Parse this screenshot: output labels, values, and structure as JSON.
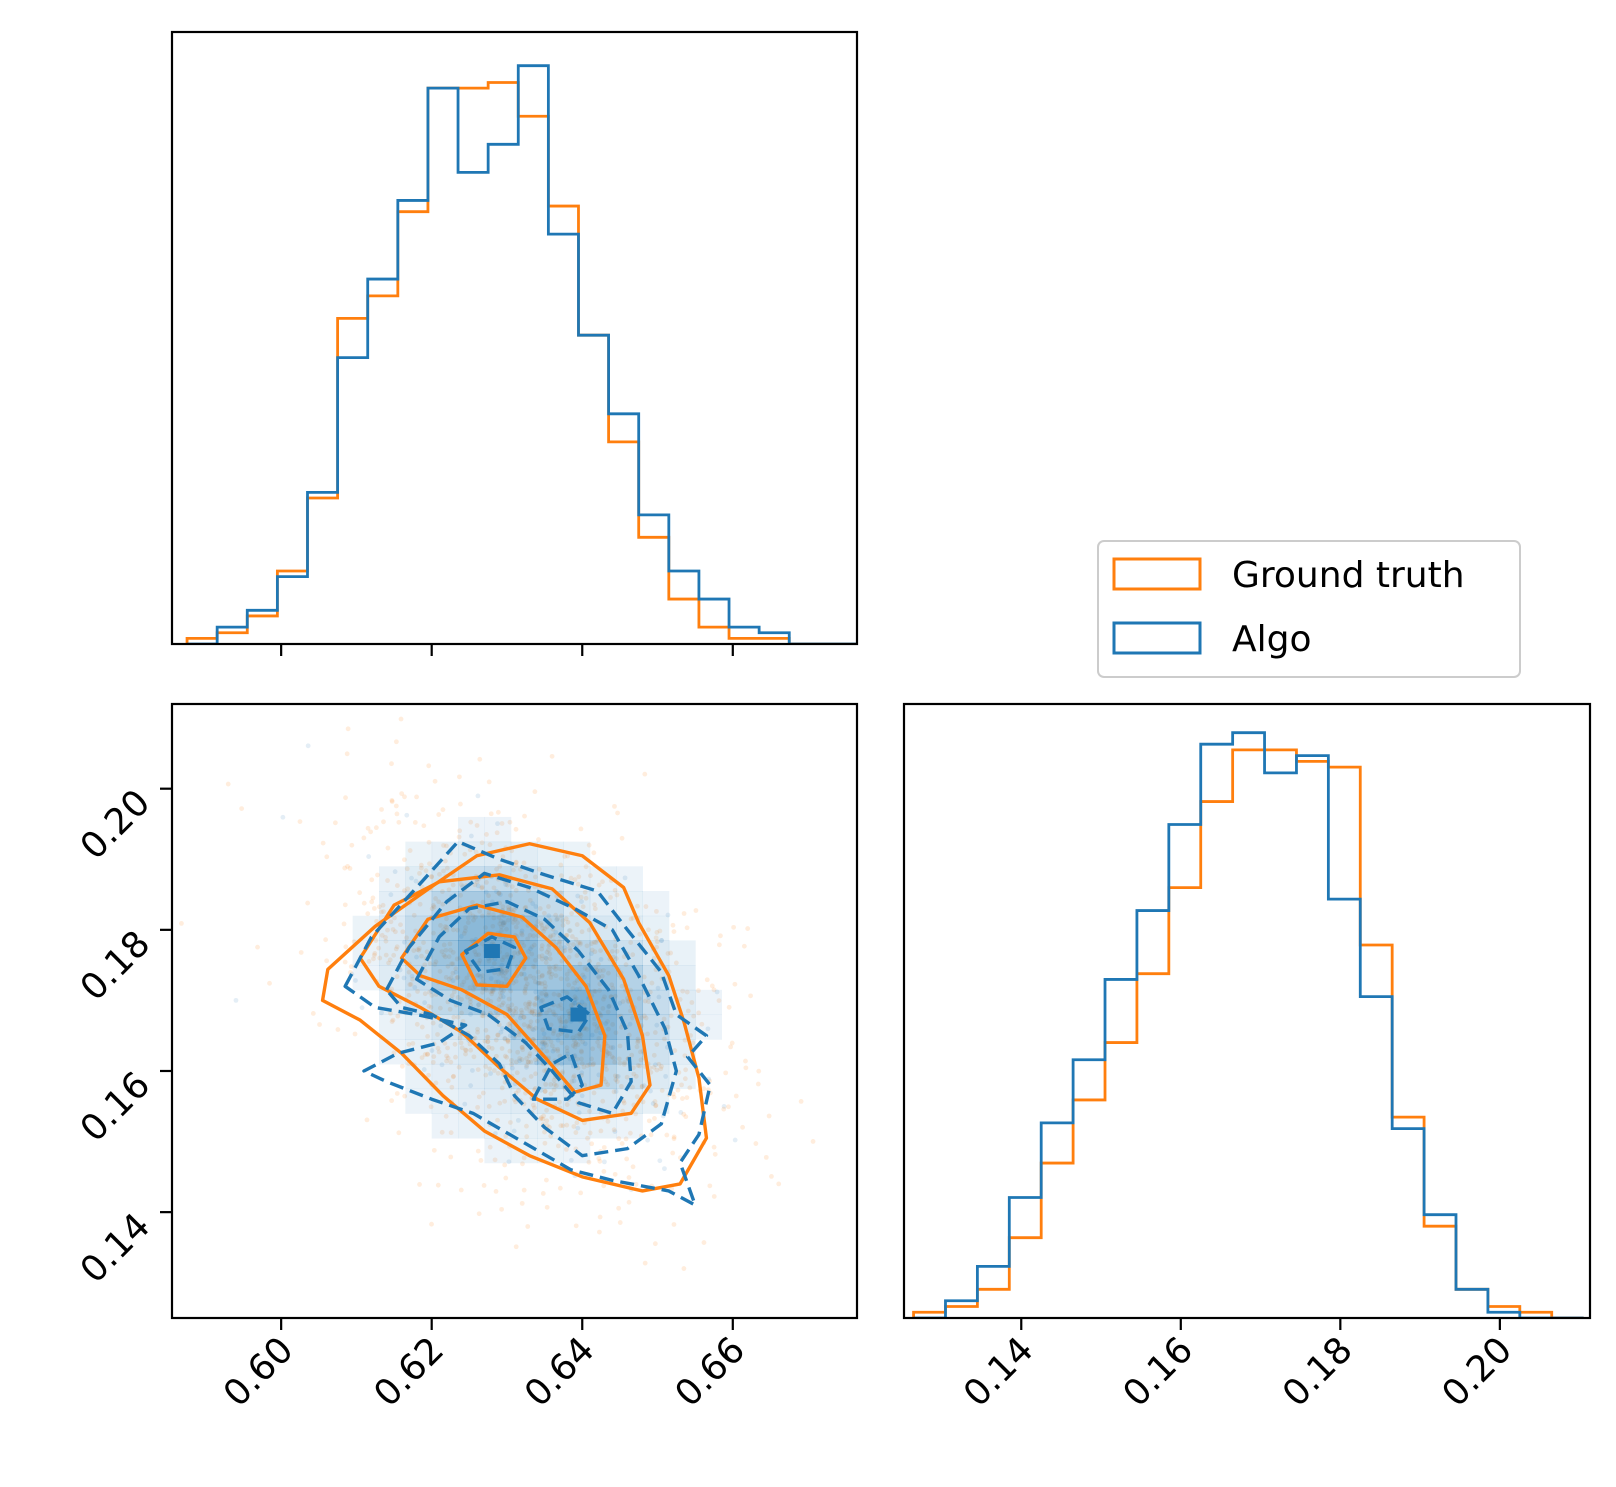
{
  "colors": {
    "ground_truth": "#ff7f0e",
    "algo": "#1f77b4",
    "axes": "#000000"
  },
  "legend": {
    "placement": "right-middle",
    "entries": [
      {
        "label": "Ground truth",
        "color": "#ff7f0e"
      },
      {
        "label": "Algo",
        "color": "#1f77b4"
      }
    ]
  },
  "chart_data": [
    {
      "panel": "top-left",
      "type": "histogram-step",
      "xlim": [
        0.5855,
        0.6765
      ],
      "x_ticks": [
        0.6,
        0.62,
        0.64,
        0.66
      ],
      "x_tick_labels_shown": false,
      "ylim": [
        0,
        1.09
      ],
      "bin_edges": [
        0.5875,
        0.5915,
        0.5955,
        0.5995,
        0.6035,
        0.6075,
        0.6115,
        0.6155,
        0.6195,
        0.6235,
        0.6275,
        0.6315,
        0.6355,
        0.6395,
        0.6435,
        0.6475,
        0.6515,
        0.6555,
        0.6595,
        0.6635,
        0.6675,
        0.6715,
        0.6765
      ],
      "series": [
        {
          "name": "Ground truth",
          "values": [
            0.01,
            0.02,
            0.05,
            0.13,
            0.26,
            0.58,
            0.62,
            0.77,
            0.99,
            0.99,
            1.0,
            0.94,
            0.78,
            0.55,
            0.36,
            0.19,
            0.08,
            0.03,
            0.01,
            0.01,
            0.0,
            0.0
          ]
        },
        {
          "name": "Algo",
          "values": [
            0.0,
            0.03,
            0.06,
            0.12,
            0.27,
            0.51,
            0.65,
            0.79,
            0.99,
            0.84,
            0.89,
            1.03,
            0.73,
            0.55,
            0.41,
            0.23,
            0.13,
            0.08,
            0.03,
            0.02,
            0.0,
            0.0
          ]
        }
      ]
    },
    {
      "panel": "bottom-left",
      "type": "scatter-contour",
      "xlim": [
        0.5855,
        0.6765
      ],
      "ylim": [
        0.125,
        0.212
      ],
      "x_ticks": [
        0.6,
        0.62,
        0.64,
        0.66
      ],
      "y_ticks": [
        0.14,
        0.16,
        0.18,
        0.2
      ],
      "x_tick_labels": [
        "0.60",
        "0.62",
        "0.64",
        "0.66"
      ],
      "y_tick_labels": [
        "0.14",
        "0.16",
        "0.18",
        "0.20"
      ],
      "contours": [
        {
          "name": "Ground truth",
          "level": 1,
          "points": [
            [
              0.6062,
              0.1744
            ],
            [
              0.6125,
              0.1805
            ],
            [
              0.6205,
              0.1865
            ],
            [
              0.626,
              0.1905
            ],
            [
              0.633,
              0.1922
            ],
            [
              0.64,
              0.1905
            ],
            [
              0.6455,
              0.186
            ],
            [
              0.6475,
              0.181
            ],
            [
              0.6515,
              0.1735
            ],
            [
              0.6535,
              0.167
            ],
            [
              0.6555,
              0.159
            ],
            [
              0.6565,
              0.1505
            ],
            [
              0.653,
              0.144
            ],
            [
              0.648,
              0.143
            ],
            [
              0.64,
              0.145
            ],
            [
              0.633,
              0.148
            ],
            [
              0.627,
              0.1515
            ],
            [
              0.6215,
              0.1565
            ],
            [
              0.616,
              0.1625
            ],
            [
              0.6105,
              0.1672
            ],
            [
              0.6055,
              0.17
            ],
            [
              0.6062,
              0.1744
            ]
          ]
        },
        {
          "name": "Ground truth",
          "level": 2,
          "points": [
            [
              0.6105,
              0.176
            ],
            [
              0.615,
              0.1835
            ],
            [
              0.621,
              0.1868
            ],
            [
              0.629,
              0.1878
            ],
            [
              0.636,
              0.1858
            ],
            [
              0.641,
              0.181
            ],
            [
              0.6455,
              0.173
            ],
            [
              0.648,
              0.165
            ],
            [
              0.649,
              0.158
            ],
            [
              0.6465,
              0.154
            ],
            [
              0.64,
              0.153
            ],
            [
              0.634,
              0.156
            ],
            [
              0.629,
              0.1605
            ],
            [
              0.624,
              0.1655
            ],
            [
              0.6185,
              0.169
            ],
            [
              0.613,
              0.172
            ],
            [
              0.6105,
              0.176
            ]
          ]
        },
        {
          "name": "Ground truth",
          "level": 3,
          "points": [
            [
              0.616,
              0.176
            ],
            [
              0.6195,
              0.1815
            ],
            [
              0.626,
              0.1835
            ],
            [
              0.632,
              0.1818
            ],
            [
              0.6365,
              0.1775
            ],
            [
              0.6405,
              0.172
            ],
            [
              0.643,
              0.165
            ],
            [
              0.6425,
              0.158
            ],
            [
              0.639,
              0.157
            ],
            [
              0.635,
              0.162
            ],
            [
              0.63,
              0.168
            ],
            [
              0.624,
              0.1715
            ],
            [
              0.6185,
              0.1735
            ],
            [
              0.616,
              0.176
            ]
          ]
        },
        {
          "name": "Ground truth",
          "level": 4,
          "points": [
            [
              0.624,
              0.1765
            ],
            [
              0.6275,
              0.1795
            ],
            [
              0.631,
              0.179
            ],
            [
              0.6325,
              0.176
            ],
            [
              0.63,
              0.172
            ],
            [
              0.626,
              0.1722
            ],
            [
              0.624,
              0.1765
            ]
          ]
        },
        {
          "name": "Algo",
          "level": 1,
          "points": [
            [
              0.6085,
              0.172
            ],
            [
              0.612,
              0.179
            ],
            [
              0.618,
              0.186
            ],
            [
              0.6235,
              0.1925
            ],
            [
              0.629,
              0.19
            ],
            [
              0.635,
              0.1878
            ],
            [
              0.642,
              0.1855
            ],
            [
              0.646,
              0.18
            ],
            [
              0.6505,
              0.174
            ],
            [
              0.6525,
              0.168
            ],
            [
              0.6565,
              0.165
            ],
            [
              0.654,
              0.162
            ],
            [
              0.657,
              0.158
            ],
            [
              0.6555,
              0.151
            ],
            [
              0.653,
              0.147
            ],
            [
              0.655,
              0.141
            ],
            [
              0.6515,
              0.143
            ],
            [
              0.644,
              0.1445
            ],
            [
              0.6385,
              0.146
            ],
            [
              0.632,
              0.15
            ],
            [
              0.6255,
              0.154
            ],
            [
              0.62,
              0.156
            ],
            [
              0.614,
              0.1585
            ],
            [
              0.611,
              0.16
            ],
            [
              0.6155,
              0.1625
            ],
            [
              0.621,
              0.164
            ],
            [
              0.6245,
              0.1665
            ],
            [
              0.618,
              0.168
            ],
            [
              0.6125,
              0.169
            ],
            [
              0.6085,
              0.172
            ]
          ]
        },
        {
          "name": "Algo",
          "level": 2,
          "points": [
            [
              0.614,
              0.1715
            ],
            [
              0.617,
              0.1775
            ],
            [
              0.622,
              0.184
            ],
            [
              0.627,
              0.188
            ],
            [
              0.633,
              0.186
            ],
            [
              0.639,
              0.183
            ],
            [
              0.644,
              0.18
            ],
            [
              0.6475,
              0.1735
            ],
            [
              0.651,
              0.166
            ],
            [
              0.6525,
              0.16
            ],
            [
              0.6505,
              0.1525
            ],
            [
              0.646,
              0.149
            ],
            [
              0.64,
              0.148
            ],
            [
              0.635,
              0.152
            ],
            [
              0.631,
              0.1565
            ],
            [
              0.629,
              0.161
            ],
            [
              0.625,
              0.165
            ],
            [
              0.62,
              0.168
            ],
            [
              0.616,
              0.169
            ],
            [
              0.614,
              0.1715
            ]
          ]
        },
        {
          "name": "Algo",
          "level": 3,
          "points": [
            [
              0.618,
              0.173
            ],
            [
              0.621,
              0.179
            ],
            [
              0.625,
              0.183
            ],
            [
              0.63,
              0.184
            ],
            [
              0.635,
              0.1815
            ],
            [
              0.6395,
              0.177
            ],
            [
              0.6435,
              0.1715
            ],
            [
              0.646,
              0.1655
            ],
            [
              0.6465,
              0.1585
            ],
            [
              0.644,
              0.154
            ],
            [
              0.6395,
              0.1555
            ],
            [
              0.636,
              0.16
            ],
            [
              0.6325,
              0.164
            ],
            [
              0.6275,
              0.168
            ],
            [
              0.6225,
              0.17
            ],
            [
              0.618,
              0.173
            ]
          ]
        },
        {
          "name": "Algo",
          "level": 4,
          "points": [
            [
              0.6245,
              0.177
            ],
            [
              0.628,
              0.179
            ],
            [
              0.631,
              0.1775
            ],
            [
              0.63,
              0.1745
            ],
            [
              0.6265,
              0.174
            ],
            [
              0.6245,
              0.177
            ]
          ]
        },
        {
          "name": "Algo",
          "level": 4,
          "points": [
            [
              0.6345,
              0.169
            ],
            [
              0.638,
              0.1705
            ],
            [
              0.641,
              0.168
            ],
            [
              0.6395,
              0.1655
            ],
            [
              0.6355,
              0.166
            ],
            [
              0.6345,
              0.169
            ]
          ]
        },
        {
          "name": "Algo",
          "level": 4,
          "points": [
            [
              0.6335,
              0.156
            ],
            [
              0.636,
              0.161
            ],
            [
              0.6385,
              0.1625
            ],
            [
              0.64,
              0.158
            ],
            [
              0.638,
              0.156
            ],
            [
              0.6335,
              0.156
            ]
          ]
        }
      ],
      "density_peaks": [
        [
          0.628,
          0.177
        ],
        [
          0.6395,
          0.168
        ]
      ]
    },
    {
      "panel": "bottom-right",
      "type": "histogram-step",
      "xlim": [
        0.1253,
        0.2113
      ],
      "ylim": [
        0,
        1.07
      ],
      "x_ticks": [
        0.14,
        0.16,
        0.18,
        0.2
      ],
      "x_tick_labels": [
        "0.14",
        "0.16",
        "0.18",
        "0.20"
      ],
      "bin_edges": [
        0.1265,
        0.1305,
        0.1345,
        0.1385,
        0.1425,
        0.1465,
        0.1505,
        0.1545,
        0.1585,
        0.1625,
        0.1665,
        0.1705,
        0.1745,
        0.1785,
        0.1825,
        0.1865,
        0.1905,
        0.1945,
        0.1985,
        0.2025,
        0.2065,
        0.2105
      ],
      "series": [
        {
          "name": "Ground truth",
          "values": [
            0.01,
            0.02,
            0.05,
            0.14,
            0.27,
            0.38,
            0.48,
            0.6,
            0.75,
            0.9,
            0.99,
            0.99,
            0.97,
            0.96,
            0.65,
            0.35,
            0.16,
            0.05,
            0.02,
            0.01,
            0.0
          ]
        },
        {
          "name": "Algo",
          "values": [
            0.0,
            0.03,
            0.09,
            0.21,
            0.34,
            0.45,
            0.59,
            0.71,
            0.86,
            1.0,
            1.02,
            0.95,
            0.98,
            0.73,
            0.56,
            0.33,
            0.18,
            0.05,
            0.01,
            0.0,
            0.0
          ]
        }
      ]
    }
  ]
}
